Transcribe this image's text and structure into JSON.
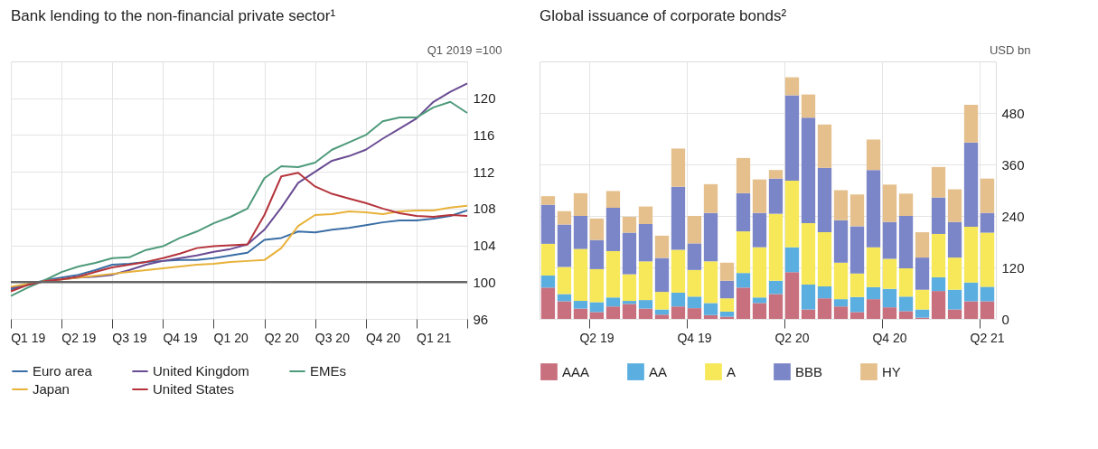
{
  "chart_data": [
    {
      "type": "line",
      "title": "Bank lending to the non-financial private sector¹",
      "ylabel": "Q1 2019 =100",
      "categories": [
        null,
        "Q1 19",
        null,
        null,
        "Q2 19",
        null,
        null,
        "Q3 19",
        null,
        null,
        "Q4 19",
        null,
        null,
        "Q1 20",
        null,
        null,
        "Q2 20",
        null,
        null,
        "Q3 20",
        null,
        null,
        "Q4 20",
        null,
        null,
        "Q1 21",
        null,
        null
      ],
      "ylim": [
        96,
        124
      ],
      "yticks": [
        96,
        100,
        104,
        108,
        112,
        116,
        120
      ],
      "grid": true,
      "legend": "bottom",
      "ref_lines": [
        {
          "axis": "y",
          "value": 100,
          "color": "#666666"
        }
      ],
      "series": [
        {
          "name": "Euro area",
          "color": "#3a6ea5",
          "values": [
            99.2,
            99.7,
            100.2,
            100.5,
            100.8,
            101.3,
            101.9,
            102.0,
            102.2,
            102.3,
            102.4,
            102.4,
            102.6,
            102.9,
            103.2,
            104.6,
            104.8,
            105.5,
            105.4,
            105.7,
            105.9,
            106.2,
            106.5,
            106.7,
            106.7,
            106.9,
            107.2,
            107.8
          ]
        },
        {
          "name": "United Kingdom",
          "color": "#6a4c93",
          "values": [
            99.4,
            99.7,
            100.1,
            100.3,
            100.5,
            100.6,
            100.8,
            101.3,
            101.9,
            102.3,
            102.6,
            102.9,
            103.3,
            103.6,
            104.1,
            105.7,
            108.1,
            110.8,
            112.0,
            113.2,
            113.7,
            114.4,
            115.6,
            116.7,
            117.8,
            119.6,
            120.7,
            121.6
          ]
        },
        {
          "name": "EMEs",
          "color": "#4e9a7a",
          "values": [
            98.5,
            99.4,
            100.2,
            101.1,
            101.7,
            102.1,
            102.6,
            102.7,
            103.5,
            103.9,
            104.8,
            105.5,
            106.4,
            107.1,
            108.0,
            111.3,
            112.6,
            112.5,
            113.0,
            114.4,
            115.2,
            116.0,
            117.5,
            117.9,
            117.9,
            119.0,
            119.6,
            118.4
          ]
        },
        {
          "name": "Japan",
          "color": "#e8b23a",
          "values": [
            99.5,
            99.8,
            100.1,
            100.3,
            100.5,
            100.7,
            100.9,
            101.1,
            101.3,
            101.5,
            101.7,
            101.9,
            102.0,
            102.2,
            102.3,
            102.4,
            103.7,
            106.1,
            107.3,
            107.4,
            107.7,
            107.6,
            107.4,
            107.7,
            107.8,
            107.8,
            108.1,
            108.3
          ]
        },
        {
          "name": "United States",
          "color": "#b5343c",
          "values": [
            99.0,
            99.7,
            100.1,
            100.3,
            100.6,
            101.1,
            101.6,
            101.9,
            102.2,
            102.6,
            103.1,
            103.7,
            103.9,
            104.0,
            104.1,
            107.3,
            111.5,
            111.9,
            110.4,
            109.6,
            109.1,
            108.6,
            108.0,
            107.5,
            107.2,
            107.1,
            107.3,
            107.2
          ]
        }
      ]
    },
    {
      "type": "bar",
      "stacked": true,
      "title": "Global issuance of corporate bonds²",
      "ylabel": "USD bn",
      "categories": [
        null,
        null,
        null,
        "Q2 19",
        null,
        null,
        null,
        null,
        null,
        "Q4 19",
        null,
        null,
        null,
        null,
        null,
        "Q2 20",
        null,
        null,
        null,
        null,
        null,
        "Q4 20",
        null,
        null,
        null,
        null,
        null,
        "Q2 21"
      ],
      "ylim": [
        0,
        600
      ],
      "yticks": [
        0,
        120,
        240,
        360,
        480
      ],
      "grid": true,
      "legend": "bottom",
      "series": [
        {
          "name": "AAA",
          "color": "#c9707f",
          "values": [
            73,
            41,
            24,
            16,
            29,
            35,
            24,
            10,
            29,
            25,
            9,
            5,
            73,
            37,
            58,
            109,
            22,
            48,
            29,
            16,
            46,
            27,
            18,
            3,
            65,
            22,
            41,
            41
          ]
        },
        {
          "name": "AA",
          "color": "#5aafe0",
          "values": [
            28,
            17,
            18,
            23,
            21,
            7,
            20,
            12,
            32,
            27,
            28,
            12,
            34,
            13,
            31,
            58,
            58,
            28,
            17,
            35,
            28,
            43,
            34,
            19,
            32,
            46,
            44,
            34
          ]
        },
        {
          "name": "A",
          "color": "#f7e85a",
          "values": [
            74,
            63,
            121,
            77,
            108,
            62,
            90,
            41,
            100,
            62,
            97,
            31,
            97,
            117,
            156,
            155,
            143,
            126,
            85,
            55,
            93,
            70,
            66,
            46,
            101,
            75,
            130,
            126
          ]
        },
        {
          "name": "BBB",
          "color": "#7b86c8",
          "values": [
            91,
            99,
            77,
            68,
            101,
            97,
            87,
            79,
            147,
            62,
            113,
            41,
            89,
            80,
            82,
            199,
            246,
            150,
            99,
            110,
            180,
            86,
            122,
            75,
            85,
            83,
            196,
            46
          ]
        },
        {
          "name": "HY",
          "color": "#e5c08d",
          "values": [
            20,
            31,
            53,
            50,
            39,
            37,
            41,
            52,
            89,
            64,
            67,
            42,
            82,
            78,
            20,
            42,
            54,
            101,
            70,
            74,
            71,
            87,
            52,
            59,
            71,
            76,
            88,
            80
          ]
        }
      ]
    }
  ]
}
